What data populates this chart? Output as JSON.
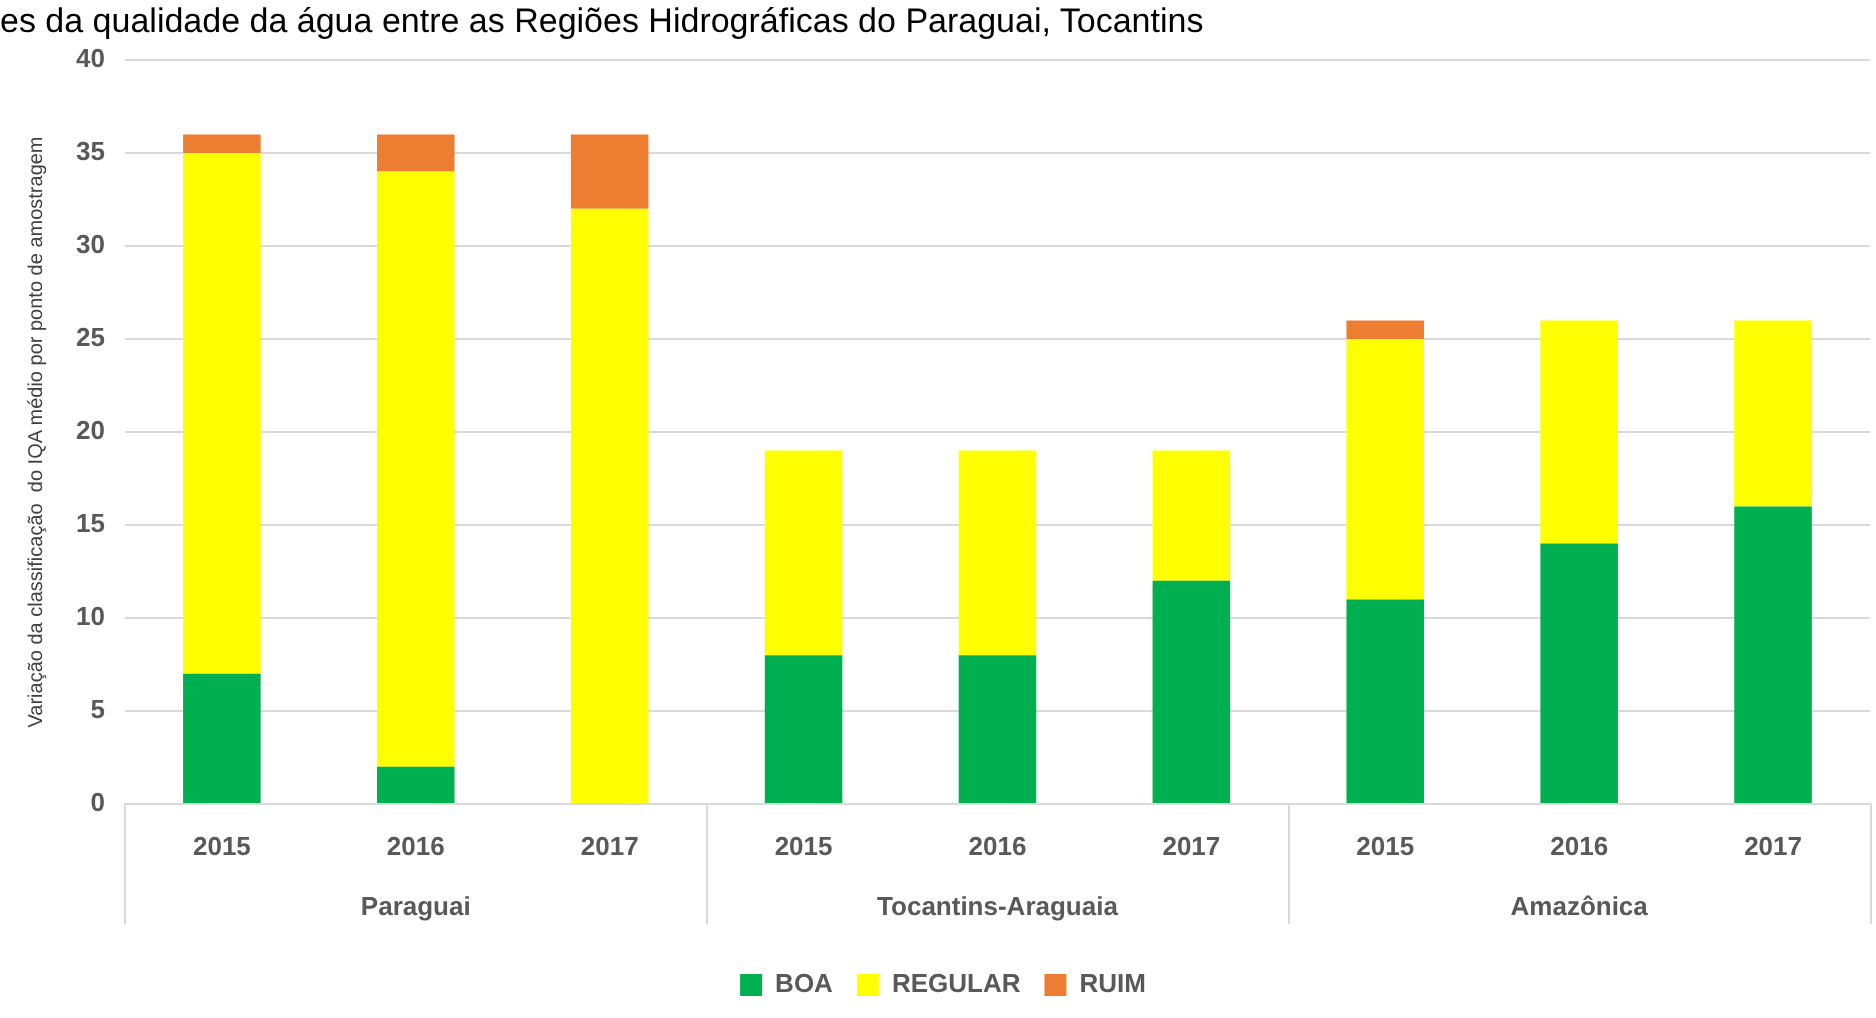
{
  "chart_data": {
    "type": "bar",
    "title": "es da qualidade da água entre as Regiões Hidrográficas do Paraguai, Tocantins",
    "ylabel": "Variação da classificação  do IQA médio por ponto de amostragem",
    "categories": [
      "2015",
      "2016",
      "2017",
      "2015",
      "2016",
      "2017",
      "2015",
      "2016",
      "2017"
    ],
    "annotations": [
      "Paraguai",
      "Tocantins-Araguaia",
      "Amazônica"
    ],
    "stacked": true,
    "series": [
      {
        "name": "BOA",
        "color": "#00b050",
        "values": [
          7,
          2,
          0,
          8,
          8,
          12,
          11,
          14,
          16
        ]
      },
      {
        "name": "REGULAR",
        "color": "#ffff00",
        "values": [
          28,
          32,
          32,
          11,
          11,
          7,
          14,
          12,
          10
        ]
      },
      {
        "name": "RUIM",
        "color": "#ed7d31",
        "values": [
          1,
          2,
          4,
          0,
          0,
          0,
          1,
          0,
          0
        ]
      }
    ],
    "ylim": [
      0,
      40
    ],
    "yticks": [
      0,
      5,
      10,
      15,
      20,
      25,
      30,
      35,
      40
    ],
    "grid": "y",
    "legend": "bottom"
  }
}
